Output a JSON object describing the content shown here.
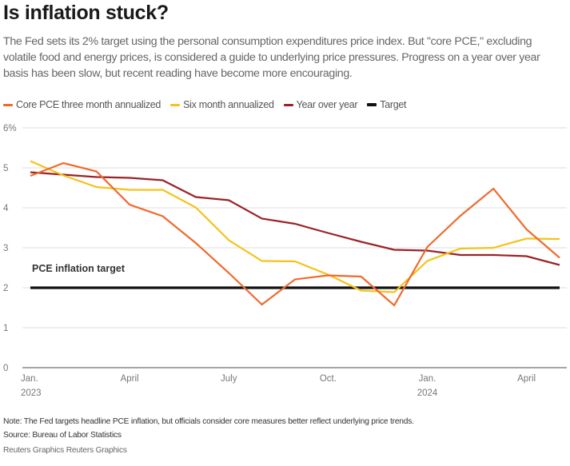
{
  "header": {
    "title": "Is inflation stuck?",
    "subtitle": "The Fed sets its 2% target using the personal consumption expenditures price index. But \"core PCE,\" excluding volatile food and energy prices, is considered a guide to underlying price pressures. Progress on a year over year basis has been slow, but recent reading have become more encouraging."
  },
  "footer": {
    "note": "Note: The Fed targets headline PCE inflation, but officials consider core measures better reflect underlying price trends.",
    "source": "Source: Bureau of Labor Statistics",
    "credit": "Reuters Graphics Reuters Graphics"
  },
  "chart_data": {
    "type": "line",
    "title": "Is inflation stuck?",
    "xlabel": "",
    "ylabel": "",
    "ylim": [
      0,
      6
    ],
    "yticks": [
      {
        "value": 0,
        "label": "0"
      },
      {
        "value": 1,
        "label": "1"
      },
      {
        "value": 2,
        "label": "2"
      },
      {
        "value": 3,
        "label": "3"
      },
      {
        "value": 4,
        "label": "4"
      },
      {
        "value": 5,
        "label": "5"
      },
      {
        "value": 6,
        "label": "6%"
      }
    ],
    "grid": true,
    "legend_position": "top-left",
    "x": [
      "2023-01",
      "2023-02",
      "2023-03",
      "2023-04",
      "2023-05",
      "2023-06",
      "2023-07",
      "2023-08",
      "2023-09",
      "2023-10",
      "2023-11",
      "2023-12",
      "2024-01",
      "2024-02",
      "2024-03",
      "2024-04",
      "2024-05"
    ],
    "xticks": [
      {
        "index": 0,
        "line1": "Jan.",
        "line2": "2023"
      },
      {
        "index": 3,
        "line1": "April",
        "line2": ""
      },
      {
        "index": 6,
        "line1": "July",
        "line2": ""
      },
      {
        "index": 9,
        "line1": "Oct.",
        "line2": ""
      },
      {
        "index": 12,
        "line1": "Jan.",
        "line2": "2024"
      },
      {
        "index": 15,
        "line1": "April",
        "line2": ""
      }
    ],
    "series": [
      {
        "name": "Core PCE three month annualized",
        "color": "#EE6A2E",
        "values": [
          4.8,
          5.12,
          4.91,
          4.08,
          3.79,
          3.12,
          2.37,
          1.58,
          2.21,
          2.31,
          2.28,
          1.56,
          3.02,
          3.8,
          4.48,
          3.46,
          2.75
        ]
      },
      {
        "name": "Six month annualized",
        "color": "#F5C21B",
        "values": [
          5.17,
          4.81,
          4.52,
          4.45,
          4.45,
          4.01,
          3.19,
          2.67,
          2.66,
          2.33,
          1.93,
          1.89,
          2.67,
          2.98,
          3.0,
          3.23,
          3.22
        ]
      },
      {
        "name": "Year over year",
        "color": "#9B2226",
        "values": [
          4.89,
          4.83,
          4.77,
          4.75,
          4.69,
          4.27,
          4.19,
          3.73,
          3.6,
          3.37,
          3.15,
          2.95,
          2.93,
          2.82,
          2.82,
          2.79,
          2.57
        ]
      },
      {
        "name": "Target",
        "color": "#111111",
        "values": [
          2,
          2,
          2,
          2,
          2,
          2,
          2,
          2,
          2,
          2,
          2,
          2,
          2,
          2,
          2,
          2,
          2
        ]
      }
    ],
    "annotations": [
      {
        "text": "PCE inflation target",
        "x_index": 0,
        "y": 2
      }
    ]
  }
}
